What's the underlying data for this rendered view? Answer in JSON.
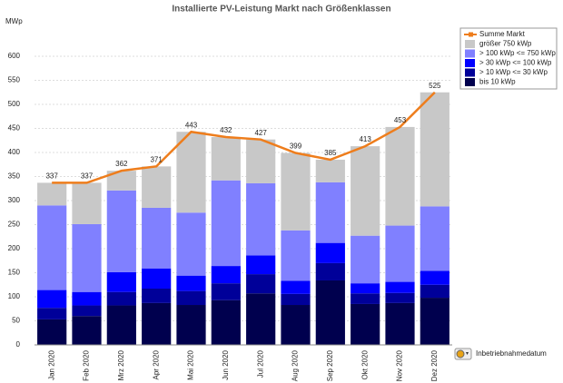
{
  "chart_data": {
    "type": "bar",
    "title": "Installierte PV-Leistung Markt nach Größenklassen",
    "ylabel": "MWp",
    "xlabel": "Inbetriebnahmedatum",
    "categories": [
      "Jan 2020",
      "Feb 2020",
      "Mrz 2020",
      "Apr 2020",
      "Mai 2020",
      "Jun 2020",
      "Jul 2020",
      "Aug 2020",
      "Sep 2020",
      "Okt 2020",
      "Nov 2020",
      "Dez 2020"
    ],
    "series": [
      {
        "name": "bis 10 kWp",
        "color": "#00004e",
        "values": [
          53,
          60,
          82,
          87,
          83,
          93,
          107,
          83,
          134,
          85,
          87,
          98
        ]
      },
      {
        "name": "> 10 kWp <= 30 kWp",
        "color": "#000099",
        "values": [
          24,
          22,
          28,
          30,
          29,
          35,
          40,
          23,
          36,
          22,
          21,
          27
        ]
      },
      {
        "name": "> 30 kWp <= 100 kWp",
        "color": "#0000ff",
        "values": [
          37,
          28,
          41,
          42,
          32,
          36,
          39,
          27,
          42,
          21,
          23,
          29
        ]
      },
      {
        "name": "> 100 kWp <= 750 kWp",
        "color": "#8080ff",
        "values": [
          176,
          141,
          170,
          126,
          131,
          178,
          150,
          105,
          126,
          99,
          117,
          134
        ]
      },
      {
        "name": "größer 750 kWp",
        "color": "#c8c8c8",
        "values": [
          47,
          86,
          41,
          86,
          168,
          90,
          91,
          161,
          47,
          186,
          205,
          237
        ]
      },
      {
        "name": "Summe Markt",
        "type": "line",
        "color": "#ee7d1c",
        "values": [
          337,
          337,
          362,
          371,
          443,
          432,
          427,
          399,
          385,
          413,
          453,
          525
        ]
      }
    ],
    "ylim": [
      0,
      600
    ],
    "yticks": [
      0,
      50,
      100,
      150,
      200,
      250,
      300,
      350,
      400,
      450,
      500,
      550,
      600
    ],
    "grid": true
  }
}
